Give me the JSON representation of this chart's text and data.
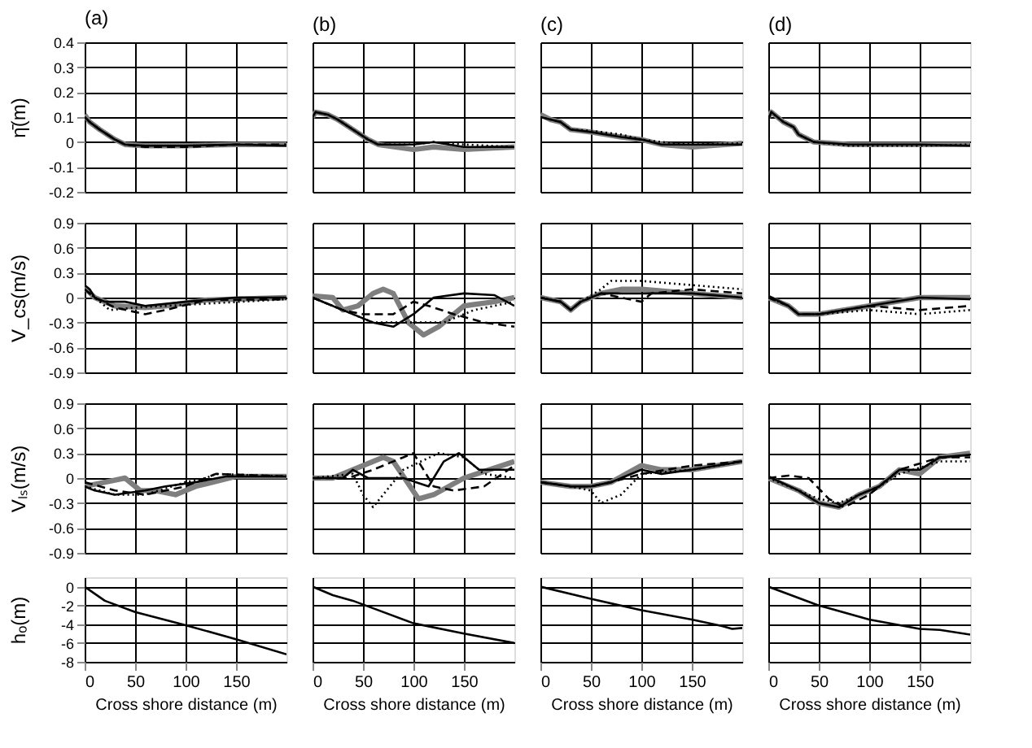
{
  "chart_data": [
    {
      "type": "line",
      "title": "(a)",
      "ylabel": "η̄(m)",
      "xlim": [
        0,
        200
      ],
      "xticks": [
        0,
        50,
        100,
        150
      ],
      "ylim": [
        -0.2,
        0.4
      ],
      "yticks": [
        -0.2,
        -0.1,
        0,
        0.1,
        0.2,
        0.3,
        0.4
      ],
      "grid": true,
      "tick_labels": "y",
      "series": [
        {
          "color": "#7f7f7f",
          "line_style": "solid",
          "x": [
            0,
            5,
            15,
            30,
            40,
            60,
            100,
            150,
            200
          ],
          "values": [
            0.11,
            0.08,
            0.05,
            0.01,
            -0.01,
            -0.015,
            -0.015,
            -0.01,
            -0.01
          ]
        },
        {
          "color": "#000000",
          "line_style": "solid",
          "x": [
            0,
            5,
            15,
            30,
            40,
            60,
            100,
            150,
            200
          ],
          "values": [
            0.1,
            0.08,
            0.05,
            0.01,
            -0.01,
            -0.015,
            -0.015,
            -0.01,
            -0.015
          ]
        },
        {
          "color": "#000000",
          "line_style": "dashed",
          "x": [
            0,
            5,
            15,
            30,
            40,
            60,
            100,
            150,
            200
          ],
          "values": [
            0.1,
            0.08,
            0.05,
            0.01,
            -0.01,
            -0.02,
            -0.02,
            -0.01,
            -0.01
          ]
        }
      ]
    },
    {
      "type": "line",
      "title": "(b)",
      "xlim": [
        0,
        200
      ],
      "xticks": [
        0,
        50,
        100,
        150
      ],
      "ylim": [
        -0.2,
        0.4
      ],
      "yticks": [
        -0.2,
        -0.1,
        0,
        0.1,
        0.2,
        0.3,
        0.4
      ],
      "grid": true,
      "tick_labels": false,
      "series": [
        {
          "color": "#7f7f7f",
          "line_style": "solid",
          "x": [
            0,
            3,
            15,
            25,
            40,
            55,
            65,
            100,
            120,
            150,
            200
          ],
          "values": [
            0.1,
            0.12,
            0.11,
            0.09,
            0.05,
            0.01,
            -0.01,
            -0.03,
            -0.02,
            -0.03,
            -0.02
          ]
        },
        {
          "color": "#000000",
          "line_style": "solid",
          "x": [
            0,
            3,
            15,
            25,
            40,
            55,
            65,
            100,
            120,
            150,
            200
          ],
          "values": [
            0.1,
            0.12,
            0.11,
            0.09,
            0.05,
            0.01,
            -0.01,
            -0.01,
            0,
            -0.02,
            -0.02
          ]
        },
        {
          "color": "#000000",
          "line_style": "dotted",
          "x": [
            0,
            3,
            15,
            25,
            40,
            55,
            65,
            100,
            120,
            150,
            200
          ],
          "values": [
            0.1,
            0.12,
            0.11,
            0.09,
            0.05,
            0.01,
            -0.01,
            -0.01,
            0,
            -0.01,
            -0.02
          ]
        }
      ]
    },
    {
      "type": "line",
      "title": "(c)",
      "xlim": [
        0,
        200
      ],
      "xticks": [
        0,
        50,
        100,
        150
      ],
      "ylim": [
        -0.2,
        0.4
      ],
      "yticks": [
        -0.2,
        -0.1,
        0,
        0.1,
        0.2,
        0.3,
        0.4
      ],
      "grid": true,
      "tick_labels": false,
      "series": [
        {
          "color": "#7f7f7f",
          "line_style": "solid",
          "x": [
            0,
            10,
            20,
            30,
            50,
            80,
            100,
            120,
            150,
            200
          ],
          "values": [
            0.11,
            0.09,
            0.08,
            0.05,
            0.04,
            0.02,
            0.01,
            -0.01,
            -0.02,
            -0.005
          ]
        },
        {
          "color": "#000000",
          "line_style": "solid",
          "x": [
            0,
            10,
            20,
            30,
            50,
            80,
            100,
            120,
            150,
            200
          ],
          "values": [
            0.1,
            0.09,
            0.08,
            0.05,
            0.04,
            0.02,
            0.01,
            -0.01,
            -0.01,
            -0.01
          ]
        },
        {
          "color": "#000000",
          "line_style": "dotted",
          "x": [
            0,
            10,
            20,
            30,
            50,
            80,
            100,
            120,
            150,
            200
          ],
          "values": [
            0.1,
            0.09,
            0.08,
            0.05,
            0.045,
            0.03,
            0.01,
            0,
            -0.01,
            -0.005
          ]
        }
      ]
    },
    {
      "type": "line",
      "title": "(d)",
      "xlim": [
        0,
        200
      ],
      "xticks": [
        0,
        50,
        100,
        150
      ],
      "ylim": [
        -0.2,
        0.4
      ],
      "yticks": [
        -0.2,
        -0.1,
        0,
        0.1,
        0.2,
        0.3,
        0.4
      ],
      "grid": true,
      "tick_labels": false,
      "series": [
        {
          "color": "#7f7f7f",
          "line_style": "solid",
          "x": [
            0,
            3,
            15,
            25,
            30,
            45,
            80,
            150,
            200
          ],
          "values": [
            0.1,
            0.12,
            0.08,
            0.06,
            0.03,
            0,
            -0.01,
            -0.01,
            -0.01
          ]
        },
        {
          "color": "#000000",
          "line_style": "solid",
          "x": [
            0,
            3,
            15,
            25,
            30,
            45,
            80,
            150,
            200
          ],
          "values": [
            0.09,
            0.12,
            0.08,
            0.06,
            0.03,
            0,
            -0.01,
            -0.01,
            -0.015
          ]
        },
        {
          "color": "#000000",
          "line_style": "dotted",
          "x": [
            0,
            3,
            15,
            25,
            30,
            45,
            80,
            150,
            200
          ],
          "values": [
            0.1,
            0.12,
            0.08,
            0.06,
            0.03,
            0,
            -0.015,
            -0.015,
            -0.01
          ]
        }
      ]
    },
    {
      "type": "line",
      "ylabel": "V_cs(m/s)",
      "xlim": [
        0,
        200
      ],
      "xticks": [
        0,
        50,
        100,
        150
      ],
      "ylim": [
        -0.9,
        0.9
      ],
      "yticks": [
        -0.9,
        -0.6,
        -0.3,
        0,
        0.3,
        0.6,
        0.9
      ],
      "grid": true,
      "tick_labels": "y",
      "series": [
        {
          "color": "#7f7f7f",
          "line_style": "solid",
          "x": [
            0,
            10,
            30,
            60,
            80,
            120,
            200
          ],
          "values": [
            0.12,
            0,
            -0.1,
            -0.12,
            -0.1,
            -0.03,
            0
          ]
        },
        {
          "color": "#000000",
          "line_style": "solid",
          "x": [
            0,
            5,
            10,
            20,
            40,
            60,
            100,
            150,
            200
          ],
          "values": [
            0.15,
            0.1,
            0,
            -0.05,
            -0.05,
            -0.1,
            -0.05,
            0,
            0
          ]
        },
        {
          "color": "#000000",
          "line_style": "dashed",
          "x": [
            0,
            10,
            30,
            60,
            80,
            120,
            200
          ],
          "values": [
            0.1,
            0,
            -0.12,
            -0.2,
            -0.15,
            -0.03,
            -0.02
          ]
        },
        {
          "color": "#000000",
          "line_style": "dotted",
          "x": [
            0,
            10,
            25,
            50,
            80,
            200
          ],
          "values": [
            0.1,
            0,
            -0.15,
            -0.12,
            -0.1,
            -0.02
          ]
        }
      ]
    },
    {
      "type": "line",
      "xlim": [
        0,
        200
      ],
      "xticks": [
        0,
        50,
        100,
        150
      ],
      "ylim": [
        -0.9,
        0.9
      ],
      "yticks": [
        -0.9,
        -0.6,
        -0.3,
        0,
        0.3,
        0.6,
        0.9
      ],
      "grid": true,
      "tick_labels": false,
      "series": [
        {
          "color": "#7f7f7f",
          "line_style": "solid",
          "x": [
            0,
            20,
            30,
            45,
            60,
            70,
            80,
            95,
            110,
            125,
            150,
            180,
            200
          ],
          "values": [
            0.02,
            0,
            -0.15,
            -0.1,
            0.05,
            0.1,
            0.05,
            -0.3,
            -0.45,
            -0.35,
            -0.1,
            -0.05,
            0
          ]
        },
        {
          "color": "#000000",
          "line_style": "solid",
          "x": [
            0,
            30,
            60,
            80,
            100,
            120,
            150,
            180,
            200
          ],
          "values": [
            0,
            -0.15,
            -0.3,
            -0.35,
            -0.2,
            0,
            0.05,
            0.03,
            -0.1
          ]
        },
        {
          "color": "#000000",
          "line_style": "dashed",
          "x": [
            0,
            30,
            50,
            80,
            100,
            115,
            140,
            170,
            200
          ],
          "values": [
            0,
            -0.15,
            -0.2,
            -0.2,
            -0.05,
            -0.1,
            -0.2,
            -0.3,
            -0.35
          ]
        },
        {
          "color": "#000000",
          "line_style": "dotted",
          "x": [
            0,
            30,
            60,
            100,
            130,
            160,
            200
          ],
          "values": [
            0,
            -0.15,
            -0.3,
            -0.3,
            -0.3,
            -0.15,
            -0.05
          ]
        }
      ]
    },
    {
      "type": "line",
      "xlim": [
        0,
        200
      ],
      "xticks": [
        0,
        50,
        100,
        150
      ],
      "ylim": [
        -0.9,
        0.9
      ],
      "yticks": [
        -0.9,
        -0.6,
        -0.3,
        0,
        0.3,
        0.6,
        0.9
      ],
      "grid": true,
      "tick_labels": false,
      "series": [
        {
          "color": "#7f7f7f",
          "line_style": "solid",
          "x": [
            0,
            20,
            30,
            40,
            60,
            80,
            100,
            150,
            200
          ],
          "values": [
            0,
            -0.05,
            -0.15,
            -0.05,
            0.05,
            0.1,
            0.1,
            0.05,
            0
          ]
        },
        {
          "color": "#000000",
          "line_style": "solid",
          "x": [
            0,
            20,
            30,
            40,
            60,
            80,
            100,
            150,
            200
          ],
          "values": [
            0,
            -0.05,
            -0.15,
            -0.05,
            0.05,
            0.05,
            0.05,
            0.05,
            0
          ]
        },
        {
          "color": "#000000",
          "line_style": "dashed",
          "x": [
            0,
            20,
            30,
            40,
            60,
            100,
            110,
            150,
            200
          ],
          "values": [
            0,
            -0.05,
            -0.15,
            -0.05,
            0.05,
            -0.05,
            0.05,
            0.1,
            0.05
          ]
        },
        {
          "color": "#000000",
          "line_style": "dotted",
          "x": [
            0,
            20,
            30,
            40,
            60,
            70,
            100,
            150,
            200
          ],
          "values": [
            0,
            -0.05,
            -0.15,
            -0.05,
            0.1,
            0.2,
            0.2,
            0.15,
            0.1
          ]
        }
      ]
    },
    {
      "type": "line",
      "xlim": [
        0,
        200
      ],
      "xticks": [
        0,
        50,
        100,
        150
      ],
      "ylim": [
        -0.9,
        0.9
      ],
      "yticks": [
        -0.9,
        -0.6,
        -0.3,
        0,
        0.3,
        0.6,
        0.9
      ],
      "grid": true,
      "tick_labels": false,
      "series": [
        {
          "color": "#7f7f7f",
          "line_style": "solid",
          "x": [
            0,
            20,
            30,
            50,
            100,
            150,
            200
          ],
          "values": [
            0,
            -0.1,
            -0.2,
            -0.2,
            -0.1,
            0,
            0
          ]
        },
        {
          "color": "#000000",
          "line_style": "solid",
          "x": [
            0,
            20,
            30,
            50,
            100,
            150,
            200
          ],
          "values": [
            0.02,
            -0.1,
            -0.2,
            -0.2,
            -0.1,
            0,
            -0.02
          ]
        },
        {
          "color": "#000000",
          "line_style": "dashed",
          "x": [
            0,
            20,
            30,
            50,
            100,
            150,
            200
          ],
          "values": [
            0,
            -0.1,
            -0.2,
            -0.2,
            -0.1,
            -0.15,
            -0.1
          ]
        },
        {
          "color": "#000000",
          "line_style": "dotted",
          "x": [
            0,
            20,
            30,
            50,
            100,
            150,
            200
          ],
          "values": [
            0,
            -0.1,
            -0.2,
            -0.2,
            -0.15,
            -0.2,
            -0.15
          ]
        }
      ]
    },
    {
      "type": "line",
      "ylabel": "Vₗₛ(m/s)",
      "xlim": [
        0,
        200
      ],
      "xticks": [
        0,
        50,
        100,
        150
      ],
      "ylim": [
        -0.9,
        0.9
      ],
      "yticks": [
        -0.9,
        -0.6,
        -0.3,
        0,
        0.3,
        0.6,
        0.9
      ],
      "grid": true,
      "tick_labels": "y",
      "series": [
        {
          "color": "#7f7f7f",
          "line_style": "solid",
          "x": [
            0,
            20,
            40,
            55,
            70,
            90,
            110,
            150,
            200
          ],
          "values": [
            -0.1,
            -0.05,
            0,
            -0.15,
            -0.15,
            -0.2,
            -0.1,
            0.02,
            0.02
          ]
        },
        {
          "color": "#000000",
          "line_style": "solid",
          "x": [
            0,
            10,
            30,
            60,
            80,
            110,
            140,
            200
          ],
          "values": [
            -0.1,
            -0.15,
            -0.2,
            -0.15,
            -0.1,
            -0.05,
            0.02,
            0.02
          ]
        },
        {
          "color": "#000000",
          "line_style": "dashed",
          "x": [
            0,
            30,
            60,
            100,
            130,
            200
          ],
          "values": [
            -0.05,
            -0.15,
            -0.2,
            -0.1,
            0.05,
            0.02
          ]
        },
        {
          "color": "#000000",
          "line_style": "dotted",
          "x": [
            0,
            30,
            60,
            100,
            120,
            130,
            200
          ],
          "values": [
            -0.1,
            -0.2,
            -0.2,
            -0.05,
            0,
            0.05,
            0.02
          ]
        }
      ]
    },
    {
      "type": "line",
      "xlim": [
        0,
        200
      ],
      "xticks": [
        0,
        50,
        100,
        150
      ],
      "ylim": [
        -0.9,
        0.9
      ],
      "yticks": [
        -0.9,
        -0.6,
        -0.3,
        0,
        0.3,
        0.6,
        0.9
      ],
      "grid": true,
      "tick_labels": false,
      "series": [
        {
          "color": "#7f7f7f",
          "line_style": "solid",
          "x": [
            0,
            20,
            40,
            70,
            80,
            105,
            120,
            150,
            200
          ],
          "values": [
            0,
            0,
            0.1,
            0.25,
            0.2,
            -0.25,
            -0.2,
            0,
            0.2
          ]
        },
        {
          "color": "#000000",
          "line_style": "solid",
          "x": [
            0,
            30,
            40,
            55,
            90,
            115,
            130,
            145,
            165,
            200
          ],
          "values": [
            0,
            0,
            0.1,
            0,
            0,
            -0.1,
            0.2,
            0.3,
            0.1,
            0.1
          ]
        },
        {
          "color": "#000000",
          "line_style": "dashed",
          "x": [
            0,
            35,
            60,
            90,
            100,
            120,
            140,
            170,
            200
          ],
          "values": [
            0,
            0,
            0.1,
            0.25,
            0.3,
            -0.1,
            -0.15,
            -0.1,
            0.15
          ]
        },
        {
          "color": "#000000",
          "line_style": "dotted",
          "x": [
            0,
            40,
            50,
            60,
            70,
            90,
            125,
            150,
            170,
            200
          ],
          "values": [
            0,
            0.05,
            -0.2,
            -0.35,
            -0.2,
            0.1,
            0.3,
            0.25,
            0.05,
            0
          ]
        }
      ]
    },
    {
      "type": "line",
      "xlim": [
        0,
        200
      ],
      "xticks": [
        0,
        50,
        100,
        150
      ],
      "ylim": [
        -0.9,
        0.9
      ],
      "yticks": [
        -0.9,
        -0.6,
        -0.3,
        0,
        0.3,
        0.6,
        0.9
      ],
      "grid": true,
      "tick_labels": false,
      "series": [
        {
          "color": "#7f7f7f",
          "line_style": "solid",
          "x": [
            0,
            30,
            50,
            70,
            100,
            120,
            150,
            200
          ],
          "values": [
            -0.05,
            -0.1,
            -0.1,
            -0.05,
            0.15,
            0.1,
            0.1,
            0.2
          ]
        },
        {
          "color": "#000000",
          "line_style": "solid",
          "x": [
            0,
            30,
            50,
            70,
            100,
            120,
            150,
            200
          ],
          "values": [
            -0.05,
            -0.1,
            -0.1,
            -0.05,
            0.1,
            0.05,
            0.1,
            0.2
          ]
        },
        {
          "color": "#000000",
          "line_style": "dashed",
          "x": [
            0,
            30,
            50,
            70,
            100,
            150,
            200
          ],
          "values": [
            -0.05,
            -0.1,
            -0.1,
            -0.05,
            0.05,
            0.15,
            0.2
          ]
        },
        {
          "color": "#000000",
          "line_style": "dotted",
          "x": [
            0,
            30,
            50,
            60,
            80,
            100,
            150,
            200
          ],
          "values": [
            -0.05,
            -0.1,
            -0.15,
            -0.3,
            -0.2,
            0.05,
            0.1,
            0.2
          ]
        }
      ]
    },
    {
      "type": "line",
      "xlim": [
        0,
        200
      ],
      "xticks": [
        0,
        50,
        100,
        150
      ],
      "ylim": [
        -0.9,
        0.9
      ],
      "yticks": [
        -0.9,
        -0.6,
        -0.3,
        0,
        0.3,
        0.6,
        0.9
      ],
      "grid": true,
      "tick_labels": false,
      "series": [
        {
          "color": "#7f7f7f",
          "line_style": "solid",
          "x": [
            0,
            30,
            50,
            70,
            90,
            110,
            130,
            150,
            170,
            200
          ],
          "values": [
            0,
            -0.15,
            -0.3,
            -0.35,
            -0.2,
            -0.1,
            0.1,
            0.05,
            0.25,
            0.3
          ]
        },
        {
          "color": "#000000",
          "line_style": "solid",
          "x": [
            0,
            30,
            50,
            70,
            90,
            110,
            130,
            150,
            170,
            200
          ],
          "values": [
            0.02,
            -0.15,
            -0.3,
            -0.35,
            -0.2,
            -0.1,
            0.1,
            0.1,
            0.25,
            0.28
          ]
        },
        {
          "color": "#000000",
          "line_style": "dashed",
          "x": [
            0,
            20,
            40,
            60,
            75,
            100,
            130,
            170,
            200
          ],
          "values": [
            0,
            0.03,
            0,
            -0.25,
            -0.35,
            -0.2,
            0.1,
            0.25,
            0.25
          ]
        },
        {
          "color": "#000000",
          "line_style": "dotted",
          "x": [
            0,
            30,
            50,
            70,
            90,
            110,
            130,
            170,
            200
          ],
          "values": [
            0,
            -0.15,
            -0.25,
            -0.3,
            -0.2,
            -0.1,
            0.05,
            0.2,
            0.2
          ]
        }
      ]
    },
    {
      "type": "line",
      "ylabel": "hₒ(m)",
      "xlabel": "Cross shore distance (m)",
      "xlim": [
        0,
        200
      ],
      "xticks": [
        0,
        50,
        100,
        150
      ],
      "ylim": [
        -8,
        1
      ],
      "yticks": [
        -8,
        -6,
        -4,
        -2,
        0
      ],
      "grid": true,
      "series": [
        {
          "color": "#000000",
          "line_style": "solid",
          "x": [
            0,
            20,
            50,
            100,
            150,
            200
          ],
          "values": [
            0,
            -1.5,
            -2.7,
            -4.1,
            -5.6,
            -7.2
          ]
        }
      ]
    },
    {
      "type": "line",
      "xlabel": "Cross shore distance (m)",
      "xlim": [
        0,
        200
      ],
      "xticks": [
        0,
        50,
        100,
        150
      ],
      "ylim": [
        -8,
        1
      ],
      "yticks": [
        -8,
        -6,
        -4,
        -2,
        0
      ],
      "grid": true,
      "tick_labels": "x",
      "series": [
        {
          "color": "#000000",
          "line_style": "solid",
          "x": [
            0,
            20,
            40,
            60,
            100,
            150,
            200
          ],
          "values": [
            0,
            -0.9,
            -1.5,
            -2.3,
            -3.9,
            -5,
            -6
          ]
        }
      ]
    },
    {
      "type": "line",
      "xlabel": "Cross shore distance (m)",
      "xlim": [
        0,
        200
      ],
      "xticks": [
        0,
        50,
        100,
        150
      ],
      "ylim": [
        -8,
        1
      ],
      "yticks": [
        -8,
        -6,
        -4,
        -2,
        0
      ],
      "grid": true,
      "tick_labels": "x",
      "series": [
        {
          "color": "#000000",
          "line_style": "solid",
          "x": [
            0,
            50,
            100,
            150,
            180,
            190,
            200
          ],
          "values": [
            0,
            -1.3,
            -2.5,
            -3.5,
            -4.2,
            -4.5,
            -4.4
          ]
        }
      ]
    },
    {
      "type": "line",
      "xlabel": "Cross shore distance (m)",
      "xlim": [
        0,
        200
      ],
      "xticks": [
        0,
        50,
        100,
        150
      ],
      "ylim": [
        -8,
        1
      ],
      "yticks": [
        -8,
        -6,
        -4,
        -2,
        0
      ],
      "grid": true,
      "tick_labels": "x",
      "series": [
        {
          "color": "#000000",
          "line_style": "solid",
          "x": [
            0,
            50,
            100,
            150,
            170,
            200
          ],
          "values": [
            0,
            -2,
            -3.5,
            -4.5,
            -4.6,
            -5.1
          ]
        }
      ]
    }
  ]
}
